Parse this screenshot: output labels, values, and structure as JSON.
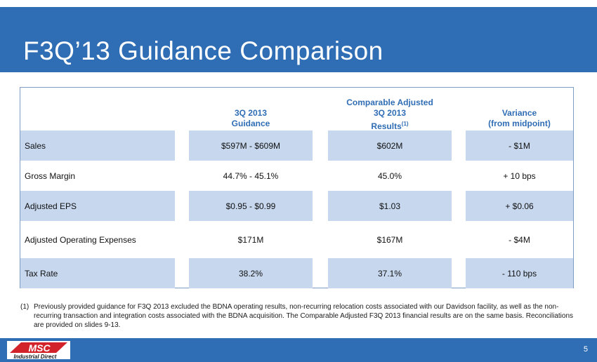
{
  "slide": {
    "title": "F3Q’13 Guidance Comparison",
    "page_number": "5"
  },
  "table": {
    "headers": {
      "guidance": [
        "3Q 2013",
        "Guidance"
      ],
      "results": [
        "Comparable Adjusted",
        "3Q 2013",
        "Results"
      ],
      "results_superscript": "(1)",
      "variance": [
        "Variance",
        "(from midpoint)"
      ]
    },
    "rows": [
      {
        "label": "Sales",
        "guidance": "$597M - $609M",
        "results": "$602M",
        "variance": "- $1M"
      },
      {
        "label": "Gross Margin",
        "guidance": "44.7% - 45.1%",
        "results": "45.0%",
        "variance": "+ 10 bps"
      },
      {
        "label": "Adjusted EPS",
        "guidance": "$0.95 - $0.99",
        "results": "$1.03",
        "variance": "+ $0.06"
      },
      {
        "label": "Adjusted Operating Expenses",
        "guidance": "$171M",
        "results": "$167M",
        "variance": "- $4M"
      },
      {
        "label": "Tax Rate",
        "guidance": "38.2%",
        "results": "37.1%",
        "variance": "- 110 bps"
      }
    ]
  },
  "footnote": {
    "marker": "(1)",
    "text": "Previously provided guidance for F3Q 2013 excluded the BDNA operating results, non-recurring relocation costs associated with our Davidson facility, as well as the non-recurring transaction and integration costs associated with the BDNA acquisition. The Comparable Adjusted F3Q 2013 financial results are on the same basis. Reconciliations are provided on slides 9-13."
  },
  "logo": {
    "wordmark": "MSC",
    "tagline": "Industrial Direct"
  },
  "colors": {
    "brand_blue": "#2f6db5",
    "row_shade": "#c6d7ee",
    "logo_red": "#d2232a"
  }
}
